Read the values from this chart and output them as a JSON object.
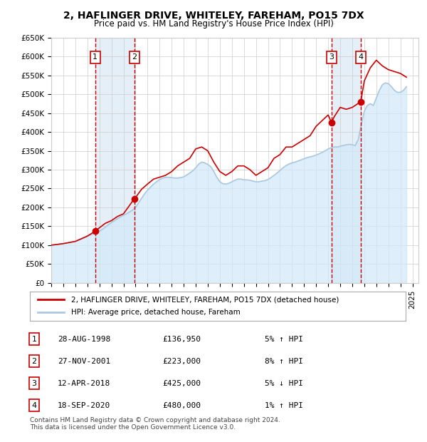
{
  "title": "2, HAFLINGER DRIVE, WHITELEY, FAREHAM, PO15 7DX",
  "subtitle": "Price paid vs. HM Land Registry's House Price Index (HPI)",
  "xlabel": "",
  "ylabel": "",
  "ylim": [
    0,
    650000
  ],
  "xlim_start": 1995.0,
  "xlim_end": 2025.5,
  "yticks": [
    0,
    50000,
    100000,
    150000,
    200000,
    250000,
    300000,
    350000,
    400000,
    450000,
    500000,
    550000,
    600000,
    650000
  ],
  "ytick_labels": [
    "£0",
    "£50K",
    "£100K",
    "£150K",
    "£200K",
    "£250K",
    "£300K",
    "£350K",
    "£400K",
    "£450K",
    "£500K",
    "£550K",
    "£600K",
    "£650K"
  ],
  "xticks": [
    1995,
    1996,
    1997,
    1998,
    1999,
    2000,
    2001,
    2002,
    2003,
    2004,
    2005,
    2006,
    2007,
    2008,
    2009,
    2010,
    2011,
    2012,
    2013,
    2014,
    2015,
    2016,
    2017,
    2018,
    2019,
    2020,
    2021,
    2022,
    2023,
    2024,
    2025
  ],
  "red_line_color": "#cc0000",
  "blue_line_color": "#aac8e0",
  "blue_fill_color": "#d0e8f8",
  "grid_color": "#cccccc",
  "background_color": "#ffffff",
  "sale_points": [
    {
      "num": 1,
      "year": 1998.65,
      "price": 136950,
      "label": "1",
      "vline_color": "#cc0000"
    },
    {
      "num": 2,
      "year": 2001.9,
      "price": 223000,
      "label": "2",
      "vline_color": "#cc0000"
    },
    {
      "num": 3,
      "year": 2018.27,
      "price": 425000,
      "label": "3",
      "vline_color": "#cc0000"
    },
    {
      "num": 4,
      "year": 2020.71,
      "price": 480000,
      "label": "4",
      "vline_color": "#cc0000"
    }
  ],
  "shade_regions": [
    {
      "x_start": 1998.65,
      "x_end": 2001.9
    },
    {
      "x_start": 2018.27,
      "x_end": 2020.71
    }
  ],
  "legend_entries": [
    {
      "label": "2, HAFLINGER DRIVE, WHITELEY, FAREHAM, PO15 7DX (detached house)",
      "color": "#cc0000",
      "lw": 2
    },
    {
      "label": "HPI: Average price, detached house, Fareham",
      "color": "#aac8e0",
      "lw": 2
    }
  ],
  "table_rows": [
    {
      "num": "1",
      "date": "28-AUG-1998",
      "price": "£136,950",
      "hpi": "5% ↑ HPI"
    },
    {
      "num": "2",
      "date": "27-NOV-2001",
      "price": "£223,000",
      "hpi": "8% ↑ HPI"
    },
    {
      "num": "3",
      "date": "12-APR-2018",
      "price": "£425,000",
      "hpi": "5% ↓ HPI"
    },
    {
      "num": "4",
      "date": "18-SEP-2020",
      "price": "£480,000",
      "hpi": "1% ↑ HPI"
    }
  ],
  "footer": "Contains HM Land Registry data © Crown copyright and database right 2024.\nThis data is licensed under the Open Government Licence v3.0.",
  "hpi_data": {
    "years": [
      1995.0,
      1995.25,
      1995.5,
      1995.75,
      1996.0,
      1996.25,
      1996.5,
      1996.75,
      1997.0,
      1997.25,
      1997.5,
      1997.75,
      1998.0,
      1998.25,
      1998.5,
      1998.75,
      1999.0,
      1999.25,
      1999.5,
      1999.75,
      2000.0,
      2000.25,
      2000.5,
      2000.75,
      2001.0,
      2001.25,
      2001.5,
      2001.75,
      2002.0,
      2002.25,
      2002.5,
      2002.75,
      2003.0,
      2003.25,
      2003.5,
      2003.75,
      2004.0,
      2004.25,
      2004.5,
      2004.75,
      2005.0,
      2005.25,
      2005.5,
      2005.75,
      2006.0,
      2006.25,
      2006.5,
      2006.75,
      2007.0,
      2007.25,
      2007.5,
      2007.75,
      2008.0,
      2008.25,
      2008.5,
      2008.75,
      2009.0,
      2009.25,
      2009.5,
      2009.75,
      2010.0,
      2010.25,
      2010.5,
      2010.75,
      2011.0,
      2011.25,
      2011.5,
      2011.75,
      2012.0,
      2012.25,
      2012.5,
      2012.75,
      2013.0,
      2013.25,
      2013.5,
      2013.75,
      2014.0,
      2014.25,
      2014.5,
      2014.75,
      2015.0,
      2015.25,
      2015.5,
      2015.75,
      2016.0,
      2016.25,
      2016.5,
      2016.75,
      2017.0,
      2017.25,
      2017.5,
      2017.75,
      2018.0,
      2018.25,
      2018.5,
      2018.75,
      2019.0,
      2019.25,
      2019.5,
      2019.75,
      2020.0,
      2020.25,
      2020.5,
      2020.75,
      2021.0,
      2021.25,
      2021.5,
      2021.75,
      2022.0,
      2022.25,
      2022.5,
      2022.75,
      2023.0,
      2023.25,
      2023.5,
      2023.75,
      2024.0,
      2024.25,
      2024.5
    ],
    "values": [
      100000,
      101000,
      102000,
      103000,
      104000,
      105500,
      107000,
      108500,
      110000,
      113000,
      116000,
      120000,
      124000,
      127000,
      130000,
      133000,
      137000,
      142000,
      148000,
      154000,
      160000,
      165000,
      170000,
      175000,
      179000,
      183000,
      188000,
      193000,
      200000,
      212000,
      224000,
      236000,
      246000,
      254000,
      262000,
      268000,
      274000,
      278000,
      280000,
      280000,
      279000,
      278000,
      278000,
      279000,
      281000,
      286000,
      291000,
      297000,
      305000,
      315000,
      320000,
      318000,
      314000,
      308000,
      295000,
      280000,
      268000,
      263000,
      262000,
      264000,
      268000,
      272000,
      275000,
      275000,
      273000,
      273000,
      272000,
      270000,
      268000,
      268000,
      270000,
      271000,
      274000,
      279000,
      285000,
      291000,
      298000,
      305000,
      311000,
      315000,
      318000,
      320000,
      323000,
      326000,
      329000,
      332000,
      334000,
      336000,
      339000,
      342000,
      346000,
      350000,
      355000,
      358000,
      360000,
      360000,
      362000,
      364000,
      366000,
      367000,
      366000,
      364000,
      380000,
      420000,
      455000,
      470000,
      475000,
      470000,
      490000,
      510000,
      525000,
      530000,
      528000,
      520000,
      510000,
      505000,
      505000,
      510000,
      520000
    ]
  },
  "price_line_data": {
    "years": [
      1995.0,
      1996.0,
      1997.0,
      1998.0,
      1998.65,
      1999.0,
      1999.5,
      2000.0,
      2000.5,
      2001.0,
      2001.9,
      2002.0,
      2002.5,
      2003.0,
      2003.5,
      2004.0,
      2004.5,
      2005.0,
      2005.5,
      2006.0,
      2006.5,
      2007.0,
      2007.5,
      2008.0,
      2008.5,
      2009.0,
      2009.5,
      2010.0,
      2010.5,
      2011.0,
      2011.5,
      2012.0,
      2012.5,
      2013.0,
      2013.5,
      2014.0,
      2014.5,
      2015.0,
      2015.5,
      2016.0,
      2016.5,
      2017.0,
      2017.5,
      2018.0,
      2018.27,
      2018.5,
      2019.0,
      2019.5,
      2020.0,
      2020.71,
      2021.0,
      2021.5,
      2022.0,
      2022.5,
      2023.0,
      2023.5,
      2024.0,
      2024.5
    ],
    "values": [
      100000,
      104000,
      110000,
      124000,
      136950,
      146000,
      158000,
      165000,
      176000,
      183000,
      223000,
      226000,
      248000,
      262000,
      275000,
      280000,
      285000,
      295000,
      310000,
      320000,
      330000,
      355000,
      360000,
      350000,
      320000,
      295000,
      285000,
      295000,
      310000,
      310000,
      300000,
      285000,
      295000,
      305000,
      330000,
      340000,
      360000,
      360000,
      370000,
      380000,
      390000,
      415000,
      430000,
      445000,
      425000,
      440000,
      465000,
      460000,
      465000,
      480000,
      535000,
      570000,
      590000,
      575000,
      565000,
      560000,
      555000,
      545000
    ]
  }
}
